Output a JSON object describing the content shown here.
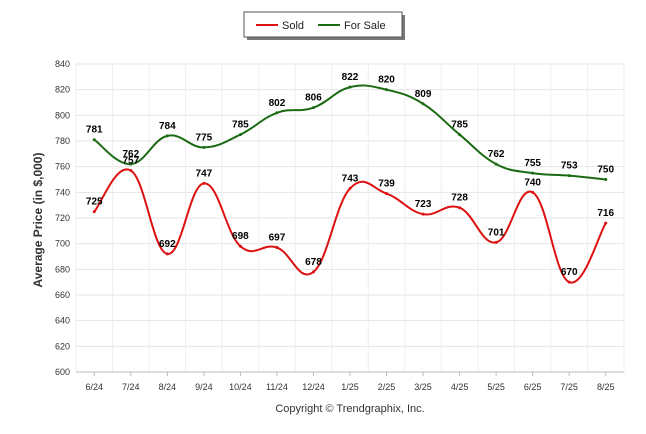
{
  "chart_data": {
    "type": "line",
    "categories": [
      "6/24",
      "7/24",
      "8/24",
      "9/24",
      "10/24",
      "11/24",
      "12/24",
      "1/25",
      "2/25",
      "3/25",
      "4/25",
      "5/25",
      "6/25",
      "7/25",
      "8/25"
    ],
    "series": [
      {
        "name": "Sold",
        "color": "#dd1111",
        "values": [
          725,
          757,
          692,
          747,
          698,
          697,
          678,
          743,
          739,
          723,
          728,
          701,
          740,
          670,
          716
        ]
      },
      {
        "name": "For Sale",
        "color": "#1b6b14",
        "values": [
          781,
          762,
          784,
          775,
          785,
          802,
          806,
          822,
          820,
          809,
          785,
          762,
          755,
          753,
          750
        ]
      }
    ],
    "ylabel": "Average Price (in $,000)",
    "ylim": [
      600,
      840
    ],
    "yticks": [
      600,
      620,
      640,
      660,
      680,
      700,
      720,
      740,
      760,
      780,
      800,
      820,
      840
    ],
    "grid": true,
    "legend": "top-center",
    "credit": "Copyright © Trendgraphix, Inc."
  }
}
